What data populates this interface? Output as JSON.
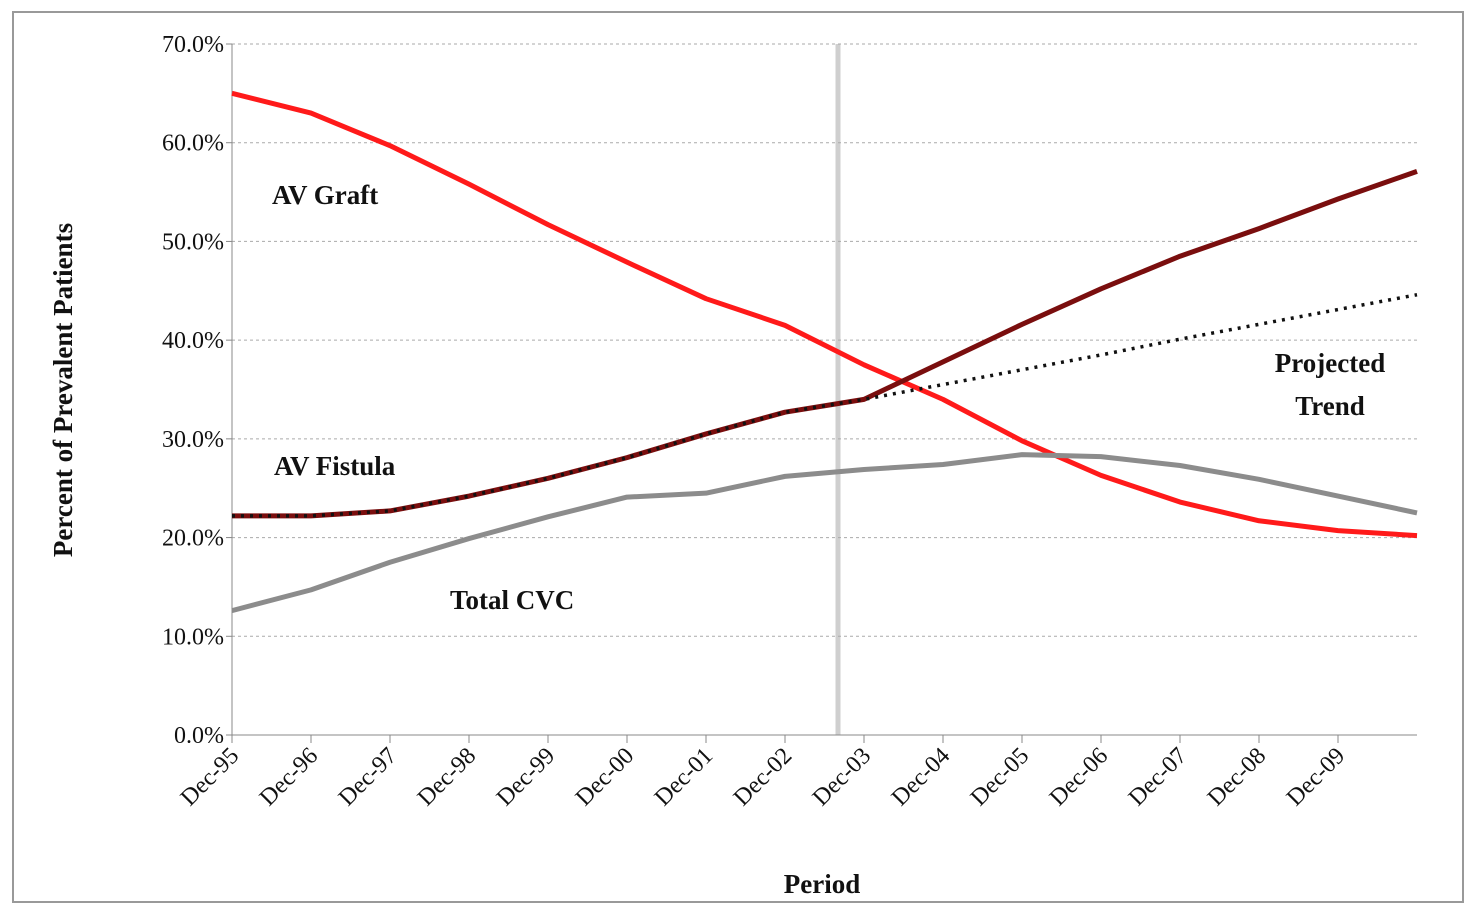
{
  "chart_data": {
    "type": "line",
    "y_label": "Percent of Prevalent Patients",
    "x_label": "Period",
    "categories": [
      "Dec-95",
      "Dec-96",
      "Dec-97",
      "Dec-98",
      "Dec-99",
      "Dec-00",
      "Dec-01",
      "Dec-02",
      "Dec-03",
      "Dec-04",
      "Dec-05",
      "Dec-06",
      "Dec-07",
      "Dec-08",
      "Dec-09",
      null
    ],
    "series": [
      {
        "name": "AV Graft",
        "color": "#ff1a1a",
        "style": "solid",
        "values": [
          65.0,
          63.0,
          59.7,
          55.8,
          51.7,
          47.9,
          44.2,
          41.5,
          37.5,
          34.0,
          29.8,
          26.3,
          23.6,
          21.7,
          20.7,
          20.2
        ]
      },
      {
        "name": "AV Fistula",
        "color": "#7a0e0e",
        "style": "solid",
        "values": [
          22.2,
          22.2,
          22.7,
          24.2,
          26.0,
          28.1,
          30.5,
          32.7,
          34.0,
          37.8,
          41.6,
          45.2,
          48.5,
          51.3,
          54.3,
          57.1
        ]
      },
      {
        "name": "Total CVC",
        "color": "#8c8c8c",
        "style": "solid",
        "values": [
          12.6,
          14.7,
          17.5,
          19.9,
          22.1,
          24.1,
          24.5,
          26.2,
          26.9,
          27.4,
          28.4,
          28.2,
          27.3,
          25.9,
          24.2,
          22.5
        ]
      },
      {
        "name": "Projected Trend",
        "color": "#111111",
        "style": "dotted",
        "values": [
          22.2,
          22.2,
          22.7,
          24.2,
          26.0,
          28.1,
          30.5,
          32.7,
          34.0,
          35.5,
          37.0,
          38.5,
          40.1,
          41.6,
          43.1,
          44.6
        ]
      }
    ],
    "ylim": [
      0,
      70
    ],
    "yticks": [
      {
        "value": 0,
        "label": "0.0%"
      },
      {
        "value": 10,
        "label": "10.0%"
      },
      {
        "value": 20,
        "label": "20.0%"
      },
      {
        "value": 30,
        "label": "30.0%"
      },
      {
        "value": 40,
        "label": "40.0%"
      },
      {
        "value": 50,
        "label": "50.0%"
      },
      {
        "value": 60,
        "label": "60.0%"
      },
      {
        "value": 70,
        "label": "70.0%"
      }
    ],
    "grid": true
  }
}
